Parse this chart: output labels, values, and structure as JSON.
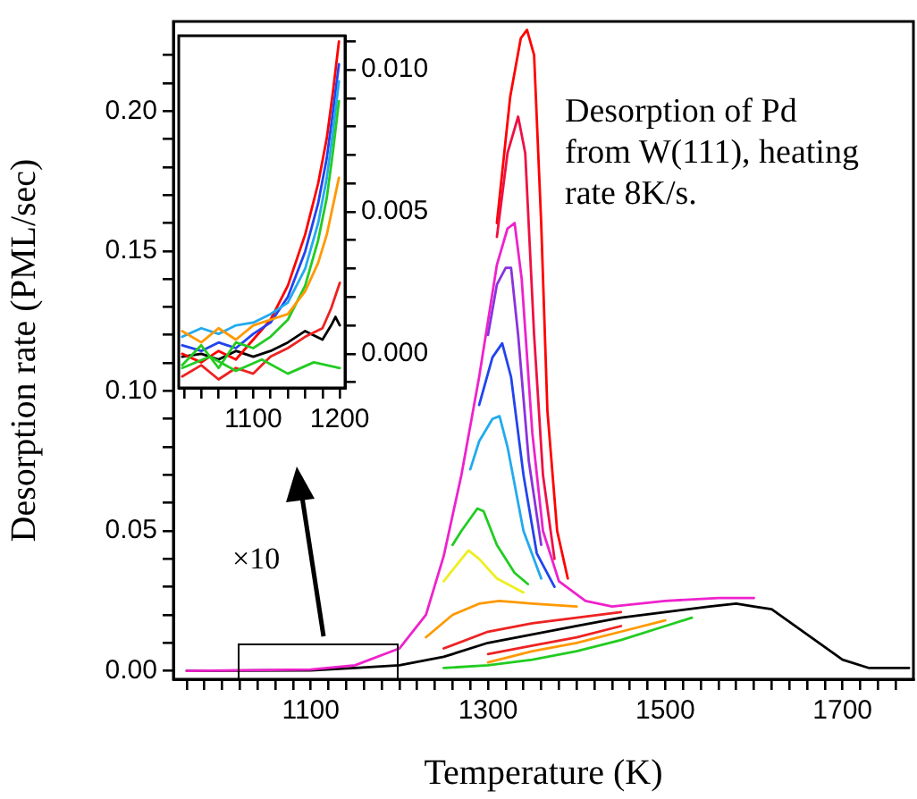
{
  "chart_data": [
    {
      "type": "line",
      "xlabel": "Temperature (K)",
      "ylabel": "Desorption rate (PML/sec)",
      "annotations": [
        "Desorption of Pd from W(111), heating rate 8K/s.",
        "×10"
      ],
      "xlim": [
        945,
        1780
      ],
      "ylim": [
        -0.003,
        0.232
      ],
      "grid": false,
      "legend": false,
      "marker": "none",
      "xticks": [
        {
          "value": 960,
          "label": null
        },
        {
          "value": 980,
          "label": null
        },
        {
          "value": 1000,
          "label": null
        },
        {
          "value": 1020,
          "label": null
        },
        {
          "value": 1040,
          "label": null
        },
        {
          "value": 1060,
          "label": null
        },
        {
          "value": 1080,
          "label": null
        },
        1100,
        {
          "value": 1120,
          "label": null
        },
        {
          "value": 1140,
          "label": null
        },
        {
          "value": 1160,
          "label": null
        },
        {
          "value": 1180,
          "label": null
        },
        {
          "value": 1200,
          "label": null
        },
        {
          "value": 1220,
          "label": null
        },
        {
          "value": 1240,
          "label": null
        },
        {
          "value": 1260,
          "label": null
        },
        {
          "value": 1280,
          "label": null
        },
        1300,
        {
          "value": 1320,
          "label": null
        },
        {
          "value": 1340,
          "label": null
        },
        {
          "value": 1360,
          "label": null
        },
        {
          "value": 1380,
          "label": null
        },
        {
          "value": 1400,
          "label": null
        },
        {
          "value": 1420,
          "label": null
        },
        {
          "value": 1440,
          "label": null
        },
        {
          "value": 1460,
          "label": null
        },
        {
          "value": 1480,
          "label": null
        },
        1500,
        {
          "value": 1520,
          "label": null
        },
        {
          "value": 1540,
          "label": null
        },
        {
          "value": 1560,
          "label": null
        },
        {
          "value": 1580,
          "label": null
        },
        {
          "value": 1600,
          "label": null
        },
        {
          "value": 1620,
          "label": null
        },
        {
          "value": 1640,
          "label": null
        },
        {
          "value": 1660,
          "label": null
        },
        {
          "value": 1680,
          "label": null
        },
        1700,
        {
          "value": 1720,
          "label": null
        },
        {
          "value": 1740,
          "label": null
        },
        {
          "value": 1760,
          "label": null
        }
      ],
      "yticks": [
        {
          "value": 0,
          "label": "0.00"
        },
        {
          "value": 0.01,
          "label": null
        },
        {
          "value": 0.02,
          "label": null
        },
        {
          "value": 0.03,
          "label": null
        },
        {
          "value": 0.04,
          "label": null
        },
        {
          "value": 0.05,
          "label": "0.05"
        },
        {
          "value": 0.06,
          "label": null
        },
        {
          "value": 0.07,
          "label": null
        },
        {
          "value": 0.08,
          "label": null
        },
        {
          "value": 0.09,
          "label": null
        },
        {
          "value": 0.1,
          "label": "0.10"
        },
        {
          "value": 0.11,
          "label": null
        },
        {
          "value": 0.12,
          "label": null
        },
        {
          "value": 0.13,
          "label": null
        },
        {
          "value": 0.14,
          "label": null
        },
        {
          "value": 0.15,
          "label": "0.15"
        },
        {
          "value": 0.16,
          "label": null
        },
        {
          "value": 0.17,
          "label": null
        },
        {
          "value": 0.18,
          "label": null
        },
        {
          "value": 0.19,
          "label": null
        },
        {
          "value": 0.2,
          "label": "0.20"
        },
        {
          "value": 0.21,
          "label": null
        },
        {
          "value": 0.22,
          "label": null
        }
      ],
      "series": [
        {
          "color": "#22cc22",
          "x": [
            1250,
            1300,
            1350,
            1400,
            1450,
            1500,
            1530
          ],
          "values": [
            0.001,
            0.002,
            0.004,
            0.007,
            0.011,
            0.016,
            0.019
          ]
        },
        {
          "color": "#ff9900",
          "x": [
            1300,
            1350,
            1400,
            1450,
            1500
          ],
          "values": [
            0.003,
            0.007,
            0.01,
            0.014,
            0.018
          ]
        },
        {
          "color": "#ee2222",
          "x": [
            1300,
            1350,
            1400,
            1450
          ],
          "values": [
            0.006,
            0.009,
            0.012,
            0.016
          ]
        },
        {
          "color": "#ee2222",
          "x": [
            1250,
            1300,
            1350,
            1400,
            1450
          ],
          "values": [
            0.008,
            0.014,
            0.017,
            0.019,
            0.021
          ]
        },
        {
          "color": "#ff9900",
          "x": [
            1230,
            1260,
            1290,
            1313,
            1350,
            1400
          ],
          "values": [
            0.012,
            0.02,
            0.024,
            0.025,
            0.024,
            0.023
          ]
        },
        {
          "color": "#eeee22",
          "x": [
            1250,
            1260,
            1278,
            1290,
            1310,
            1340
          ],
          "values": [
            0.032,
            0.036,
            0.043,
            0.04,
            0.033,
            0.028
          ]
        },
        {
          "color": "#22cc22",
          "x": [
            1260,
            1270,
            1288,
            1295,
            1310,
            1330,
            1345
          ],
          "values": [
            0.045,
            0.05,
            0.058,
            0.057,
            0.045,
            0.035,
            0.031
          ]
        },
        {
          "color": "#22aaee",
          "x": [
            1280,
            1290,
            1305,
            1313,
            1322,
            1340,
            1360
          ],
          "values": [
            0.072,
            0.082,
            0.09,
            0.091,
            0.08,
            0.05,
            0.033
          ]
        },
        {
          "color": "#2244ee",
          "x": [
            1290,
            1305,
            1316,
            1326,
            1340,
            1355,
            1375
          ],
          "values": [
            0.095,
            0.112,
            0.117,
            0.105,
            0.07,
            0.042,
            0.03
          ]
        },
        {
          "color": "#8833dd",
          "x": [
            1300,
            1310,
            1320,
            1326,
            1334,
            1346,
            1360
          ],
          "values": [
            0.12,
            0.138,
            0.144,
            0.144,
            0.12,
            0.075,
            0.045
          ]
        },
        {
          "color": "#ee1144",
          "x": [
            1310,
            1322,
            1334,
            1342,
            1352,
            1362,
            1375
          ],
          "values": [
            0.155,
            0.185,
            0.198,
            0.185,
            0.12,
            0.07,
            0.04
          ]
        },
        {
          "color": "#ff0000",
          "x": [
            1310,
            1325,
            1337,
            1344,
            1352,
            1360,
            1367,
            1378,
            1390
          ],
          "values": [
            0.16,
            0.205,
            0.226,
            0.229,
            0.22,
            0.16,
            0.093,
            0.05,
            0.033
          ]
        },
        {
          "color": "#ee22cc",
          "x": [
            960,
            1100,
            1150,
            1200,
            1230,
            1250,
            1270,
            1290,
            1310,
            1322,
            1330,
            1338,
            1350,
            1362,
            1380,
            1410,
            1440,
            1500,
            1560,
            1600
          ],
          "values": [
            0,
            0.0005,
            0.002,
            0.008,
            0.02,
            0.041,
            0.07,
            0.105,
            0.145,
            0.158,
            0.16,
            0.14,
            0.085,
            0.05,
            0.032,
            0.025,
            0.023,
            0.025,
            0.026,
            0.026
          ]
        },
        {
          "color": "#000000",
          "x": [
            960,
            1100,
            1150,
            1200,
            1250,
            1300,
            1350,
            1400,
            1450,
            1500,
            1550,
            1580,
            1600,
            1620,
            1660,
            1700,
            1730,
            1775
          ],
          "values": [
            0,
            0.0002,
            0.001,
            0.002,
            0.005,
            0.01,
            0.013,
            0.016,
            0.019,
            0.021,
            0.023,
            0.024,
            0.023,
            0.022,
            0.013,
            0.004,
            0.001,
            0.001
          ]
        }
      ]
    },
    {
      "type": "line",
      "xlim": [
        1014,
        1206
      ],
      "ylim": [
        -0.0012,
        0.0112
      ],
      "grid": false,
      "legend": false,
      "marker": "none",
      "xticks": [
        {
          "value": 1020,
          "label": null
        },
        {
          "value": 1040,
          "label": null
        },
        {
          "value": 1060,
          "label": null
        },
        {
          "value": 1080,
          "label": null
        },
        1100,
        {
          "value": 1120,
          "label": null
        },
        {
          "value": 1140,
          "label": null
        },
        {
          "value": 1160,
          "label": null
        },
        {
          "value": 1180,
          "label": null
        },
        1200
      ],
      "yticks": [
        {
          "value": -0.001,
          "label": null
        },
        {
          "value": 0,
          "label": "0.000"
        },
        {
          "value": 0.001,
          "label": null
        },
        {
          "value": 0.002,
          "label": null
        },
        {
          "value": 0.003,
          "label": null
        },
        {
          "value": 0.004,
          "label": null
        },
        {
          "value": 0.005,
          "label": "0.005"
        },
        {
          "value": 0.006,
          "label": null
        },
        {
          "value": 0.007,
          "label": null
        },
        {
          "value": 0.008,
          "label": null
        },
        {
          "value": 0.009,
          "label": null
        },
        {
          "value": 0.01,
          "label": "0.010"
        },
        {
          "value": 0.011,
          "label": null
        }
      ],
      "series": [
        {
          "color": "#22cc22",
          "x": [
            1018,
            1050,
            1080,
            1110,
            1140,
            1170,
            1200
          ],
          "values": [
            -0.0005,
            -0.0001,
            -0.0006,
            -0.0002,
            -0.0007,
            -0.0003,
            -0.0005
          ]
        },
        {
          "color": "#ff9900",
          "x": [
            1018,
            1040,
            1060,
            1080,
            1100,
            1120,
            1140,
            1160,
            1175,
            1185,
            1192,
            1199
          ],
          "values": [
            0.0008,
            0.0004,
            0.0009,
            0.0005,
            0.001,
            0.0012,
            0.0014,
            0.0022,
            0.0032,
            0.0042,
            0.0052,
            0.0062
          ]
        },
        {
          "color": "#22cc22",
          "x": [
            1018,
            1040,
            1060,
            1080,
            1100,
            1120,
            1140,
            1160,
            1175,
            1185,
            1192,
            1199
          ],
          "values": [
            -0.0004,
            0.0003,
            -0.0005,
            0.0004,
            0.0002,
            0.0006,
            0.0012,
            0.0024,
            0.004,
            0.0055,
            0.0071,
            0.0089
          ]
        },
        {
          "color": "#22aaee",
          "x": [
            1018,
            1040,
            1060,
            1080,
            1100,
            1120,
            1140,
            1160,
            1175,
            1185,
            1192,
            1199
          ],
          "values": [
            0.0006,
            0.0009,
            0.0007,
            0.001,
            0.0011,
            0.0014,
            0.0018,
            0.003,
            0.0046,
            0.0062,
            0.0078,
            0.0096
          ]
        },
        {
          "color": "#2244ee",
          "x": [
            1018,
            1040,
            1060,
            1080,
            1100,
            1120,
            1140,
            1160,
            1175,
            1185,
            1192,
            1199
          ],
          "values": [
            0.0003,
            0.0001,
            0.0004,
            0.0002,
            0.0007,
            0.0011,
            0.002,
            0.0036,
            0.0053,
            0.0069,
            0.0085,
            0.0102
          ]
        },
        {
          "color": "#ee2222",
          "x": [
            1018,
            1040,
            1060,
            1080,
            1100,
            1120,
            1140,
            1160,
            1180,
            1190,
            1200
          ],
          "values": [
            -0.0008,
            -0.0004,
            -0.0009,
            -0.0005,
            -0.0007,
            -0.0001,
            0.0002,
            0.0006,
            0.0009,
            0.0016,
            0.0025
          ]
        },
        {
          "color": "#ff0000",
          "x": [
            1018,
            1040,
            1060,
            1080,
            1100,
            1120,
            1140,
            1160,
            1175,
            1185,
            1192,
            1199
          ],
          "values": [
            0,
            -0.0003,
            0.0001,
            -0.0002,
            0.0005,
            0.0012,
            0.0024,
            0.0042,
            0.006,
            0.0076,
            0.0092,
            0.011
          ]
        },
        {
          "color": "#000000",
          "x": [
            1018,
            1040,
            1060,
            1080,
            1100,
            1120,
            1140,
            1160,
            1180,
            1190,
            1195,
            1200
          ],
          "values": [
            -0.0001,
            0,
            -0.0002,
            0.0001,
            -0.0001,
            0.0001,
            0.0004,
            0.0008,
            0.0005,
            0.001,
            0.0013,
            0.001
          ]
        }
      ]
    }
  ]
}
